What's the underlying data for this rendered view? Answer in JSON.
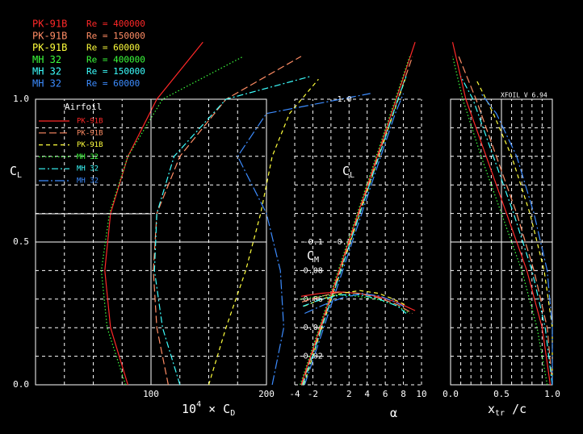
{
  "legend_title": "Airfoil",
  "signature": "XFOIL V 6.94",
  "chart_data": [
    {
      "type": "polar",
      "ylabel": [
        "C",
        "L"
      ],
      "xlabel": [
        "10",
        "4",
        " × C",
        "D"
      ],
      "xlim": [
        0,
        200
      ],
      "ylim": [
        0,
        1
      ],
      "xticks": [
        100,
        200
      ],
      "yticks": [
        {
          "value": 0,
          "label": "0.0"
        },
        {
          "value": 0.5,
          "label": "0.5"
        },
        {
          "value": 1,
          "label": "1.0"
        }
      ],
      "xgrid": [
        25,
        50,
        75,
        125,
        150,
        175
      ],
      "ygrid": [
        0.1,
        0.2,
        0.3,
        0.4,
        0.6,
        0.7,
        0.8,
        0.9
      ],
      "series": [
        {
          "name": "PK-91B",
          "re": "Re = 400000",
          "color": "#ff2828",
          "style": "solid",
          "x": [
            80,
            65,
            60,
            65,
            80,
            105,
            145
          ],
          "values": [
            0,
            0.2,
            0.4,
            0.6,
            0.8,
            1.0,
            1.2
          ]
        },
        {
          "name": "PK-91B",
          "re": "Re = 150000",
          "color": "#ff8c64",
          "style": "longdash",
          "x": [
            115,
            105,
            102,
            105,
            125,
            165,
            230
          ],
          "values": [
            0,
            0.2,
            0.4,
            0.6,
            0.8,
            1.0,
            1.15
          ]
        },
        {
          "name": "PK-91B",
          "re": "Re = 60000",
          "color": "#ffff3c",
          "style": "dashed",
          "x": [
            150,
            165,
            182,
            195,
            205,
            220,
            245
          ],
          "values": [
            0,
            0.2,
            0.4,
            0.6,
            0.8,
            0.95,
            1.07
          ]
        },
        {
          "name": "MH 32",
          "re": "Re = 400000",
          "color": "#3cff3c",
          "style": "dotted",
          "x": [
            78,
            62,
            57,
            64,
            80,
            110,
            180
          ],
          "values": [
            0,
            0.2,
            0.4,
            0.6,
            0.8,
            1.0,
            1.15
          ]
        },
        {
          "name": "MH 32",
          "re": "Re = 150000",
          "color": "#3cffff",
          "style": "dashdot",
          "x": [
            125,
            110,
            103,
            105,
            120,
            165,
            238
          ],
          "values": [
            0,
            0.2,
            0.4,
            0.6,
            0.8,
            1.0,
            1.08
          ]
        },
        {
          "name": "MH 32",
          "re": "Re = 60000",
          "color": "#3c8cff",
          "style": "longdashdot",
          "x": [
            205,
            215,
            212,
            200,
            175,
            200,
            290
          ],
          "values": [
            0,
            0.2,
            0.4,
            0.6,
            0.8,
            0.95,
            1.02
          ]
        }
      ]
    },
    {
      "type": "alpha",
      "xlabel": [
        "α"
      ],
      "ylabel": [
        "C",
        "L"
      ],
      "y2label": [
        "C",
        "M"
      ],
      "xlim": [
        -4,
        10
      ],
      "ylim": [
        0,
        1
      ],
      "y2lim": [
        0,
        -0.2
      ],
      "xticks": [
        -4,
        -2,
        2,
        4,
        6,
        8,
        10
      ],
      "yticks": [
        {
          "value": 0.5,
          "label": "0.5"
        },
        {
          "value": 1,
          "label": "1.0"
        }
      ],
      "y2ticks": [
        -0.02,
        -0.04,
        -0.06,
        -0.08,
        -0.1
      ],
      "xgrid": [
        -4,
        -2,
        0,
        2,
        4,
        6,
        8,
        10
      ],
      "ygrid": [
        0.1,
        0.2,
        0.3,
        0.4,
        0.5,
        0.6,
        0.7,
        0.8,
        0.9,
        1.0
      ],
      "series": [
        {
          "x": [
            -3.3,
            -1.2,
            0.9,
            3.0,
            5.1,
            7.2,
            9.3
          ],
          "values": [
            0,
            0.2,
            0.4,
            0.6,
            0.8,
            1.0,
            1.2
          ]
        },
        {
          "x": [
            -3.2,
            -1.1,
            1.0,
            3.1,
            5.2,
            7.4,
            9.0
          ],
          "values": [
            0,
            0.2,
            0.4,
            0.6,
            0.8,
            1.0,
            1.15
          ]
        },
        {
          "x": [
            -3.0,
            -1.0,
            1.1,
            3.2,
            5.3,
            6.9,
            8.2
          ],
          "values": [
            0,
            0.2,
            0.4,
            0.6,
            0.8,
            0.95,
            1.07
          ]
        },
        {
          "x": [
            -3.4,
            -1.3,
            0.8,
            2.9,
            5.0,
            7.1,
            8.7
          ],
          "values": [
            0,
            0.2,
            0.4,
            0.6,
            0.8,
            1.0,
            1.15
          ]
        },
        {
          "x": [
            -3.1,
            -1.0,
            1.1,
            3.2,
            5.3,
            7.4,
            8.3
          ],
          "values": [
            0,
            0.2,
            0.4,
            0.6,
            0.8,
            1.0,
            1.08
          ]
        },
        {
          "x": [
            -2.9,
            -0.8,
            1.3,
            3.4,
            5.5,
            7.1,
            8.0
          ],
          "values": [
            0,
            0.2,
            0.4,
            0.6,
            0.8,
            0.95,
            1.02
          ]
        },
        {
          "axis": "y2",
          "x": [
            -3.3,
            -1.2,
            0.9,
            3.0,
            5.1,
            7.2,
            9.3
          ],
          "values": [
            -0.062,
            -0.064,
            -0.065,
            -0.064,
            -0.062,
            -0.058,
            -0.052
          ]
        },
        {
          "axis": "y2",
          "x": [
            -3.2,
            -1.1,
            1.0,
            3.1,
            5.2,
            7.4,
            9.0
          ],
          "values": [
            -0.058,
            -0.062,
            -0.065,
            -0.064,
            -0.061,
            -0.056,
            -0.05
          ]
        },
        {
          "axis": "y2",
          "x": [
            -3.0,
            -1.0,
            1.1,
            3.2,
            5.3,
            6.9,
            8.2
          ],
          "values": [
            -0.055,
            -0.06,
            -0.064,
            -0.066,
            -0.064,
            -0.06,
            -0.056
          ]
        },
        {
          "axis": "y2",
          "x": [
            -3.4,
            -1.3,
            0.8,
            2.9,
            5.0,
            7.1,
            8.7
          ],
          "values": [
            -0.06,
            -0.062,
            -0.063,
            -0.062,
            -0.06,
            -0.056,
            -0.05
          ]
        },
        {
          "axis": "y2",
          "x": [
            -3.1,
            -1.0,
            1.1,
            3.2,
            5.3,
            7.4,
            8.3
          ],
          "values": [
            -0.055,
            -0.06,
            -0.063,
            -0.063,
            -0.06,
            -0.055,
            -0.05
          ]
        },
        {
          "axis": "y2",
          "x": [
            -2.9,
            -0.8,
            1.3,
            3.4,
            5.5,
            7.1,
            8.0
          ],
          "values": [
            -0.05,
            -0.056,
            -0.061,
            -0.064,
            -0.062,
            -0.058,
            -0.055
          ]
        }
      ]
    },
    {
      "type": "transition",
      "xlabel": [
        "x",
        "tr",
        " /c"
      ],
      "xlim": [
        0,
        1
      ],
      "ylim": [
        0,
        1
      ],
      "xticks": [
        {
          "value": 0,
          "label": "0.0"
        },
        {
          "value": 0.5,
          "label": "0.5"
        },
        {
          "value": 1,
          "label": "1.0"
        }
      ],
      "yticks": [
        0.5,
        1
      ],
      "xgrid": [
        0.1,
        0.2,
        0.3,
        0.4,
        0.6,
        0.7,
        0.8,
        0.9
      ],
      "ygrid": [
        0.1,
        0.2,
        0.3,
        0.4,
        0.6,
        0.7,
        0.8,
        0.9
      ],
      "series": [
        {
          "x": [
            0.98,
            0.9,
            0.75,
            0.55,
            0.35,
            0.15,
            0.02
          ],
          "values": [
            0,
            0.2,
            0.4,
            0.6,
            0.8,
            1.0,
            1.2
          ]
        },
        {
          "x": [
            1.0,
            0.95,
            0.82,
            0.65,
            0.45,
            0.25,
            0.08
          ],
          "values": [
            0,
            0.2,
            0.4,
            0.6,
            0.8,
            1.0,
            1.15
          ]
        },
        {
          "x": [
            1.0,
            1.0,
            0.92,
            0.78,
            0.6,
            0.42,
            0.25
          ],
          "values": [
            0,
            0.2,
            0.4,
            0.6,
            0.8,
            0.95,
            1.07
          ]
        },
        {
          "x": [
            0.95,
            0.85,
            0.7,
            0.5,
            0.3,
            0.12,
            0.02
          ],
          "values": [
            0,
            0.2,
            0.4,
            0.6,
            0.8,
            1.0,
            1.15
          ]
        },
        {
          "x": [
            1.0,
            0.93,
            0.8,
            0.62,
            0.42,
            0.22,
            0.1
          ],
          "values": [
            0,
            0.2,
            0.4,
            0.6,
            0.8,
            1.0,
            1.08
          ]
        },
        {
          "x": [
            1.0,
            1.0,
            0.95,
            0.82,
            0.65,
            0.45,
            0.3
          ],
          "values": [
            0,
            0.2,
            0.4,
            0.6,
            0.8,
            0.95,
            1.02
          ]
        }
      ]
    }
  ]
}
